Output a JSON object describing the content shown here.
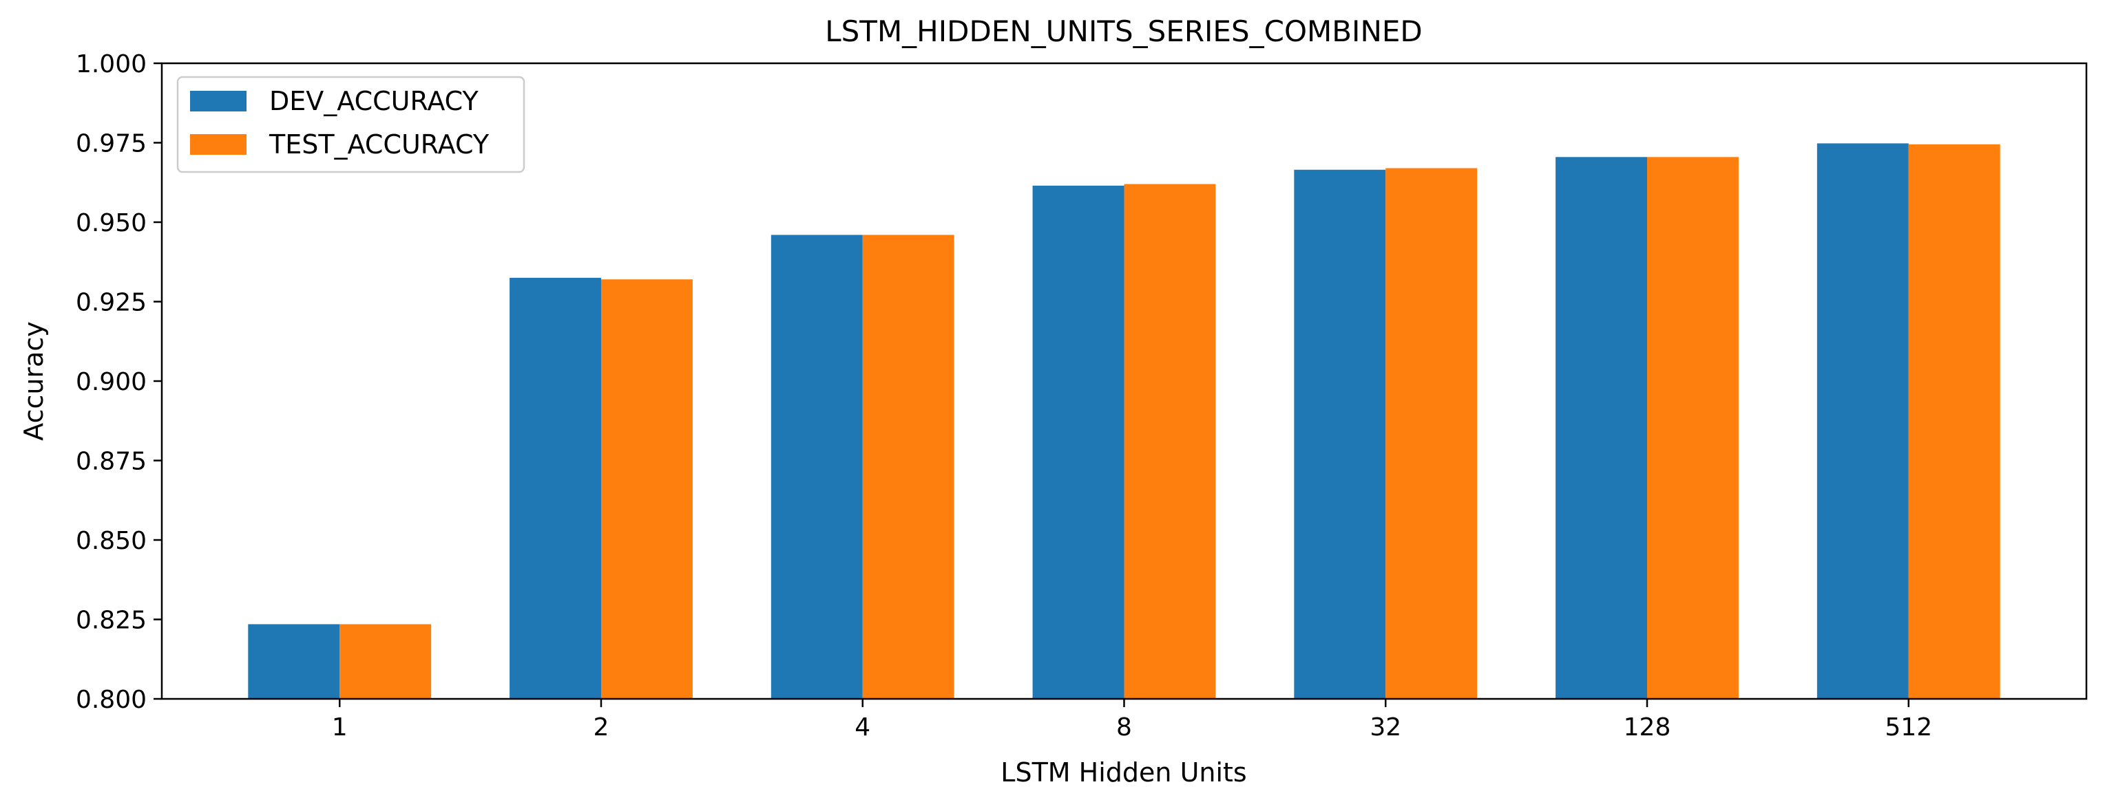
{
  "chart_data": {
    "type": "bar",
    "title": "LSTM_HIDDEN_UNITS_SERIES_COMBINED",
    "xlabel": "LSTM Hidden Units",
    "ylabel": "Accuracy",
    "categories": [
      "1",
      "2",
      "4",
      "8",
      "32",
      "128",
      "512"
    ],
    "ylim": [
      0.8,
      1.0
    ],
    "yticks": [
      "0.800",
      "0.825",
      "0.850",
      "0.875",
      "0.900",
      "0.925",
      "0.950",
      "0.975",
      "1.000"
    ],
    "grid": false,
    "legend_position": "top-left",
    "series": [
      {
        "name": "DEV_ACCURACY",
        "color": "#1f77b4",
        "values": [
          0.8235,
          0.9325,
          0.946,
          0.9615,
          0.9665,
          0.9705,
          0.9748
        ]
      },
      {
        "name": "TEST_ACCURACY",
        "color": "#ff7f0e",
        "values": [
          0.8235,
          0.932,
          0.946,
          0.962,
          0.967,
          0.9705,
          0.9745
        ]
      }
    ]
  }
}
